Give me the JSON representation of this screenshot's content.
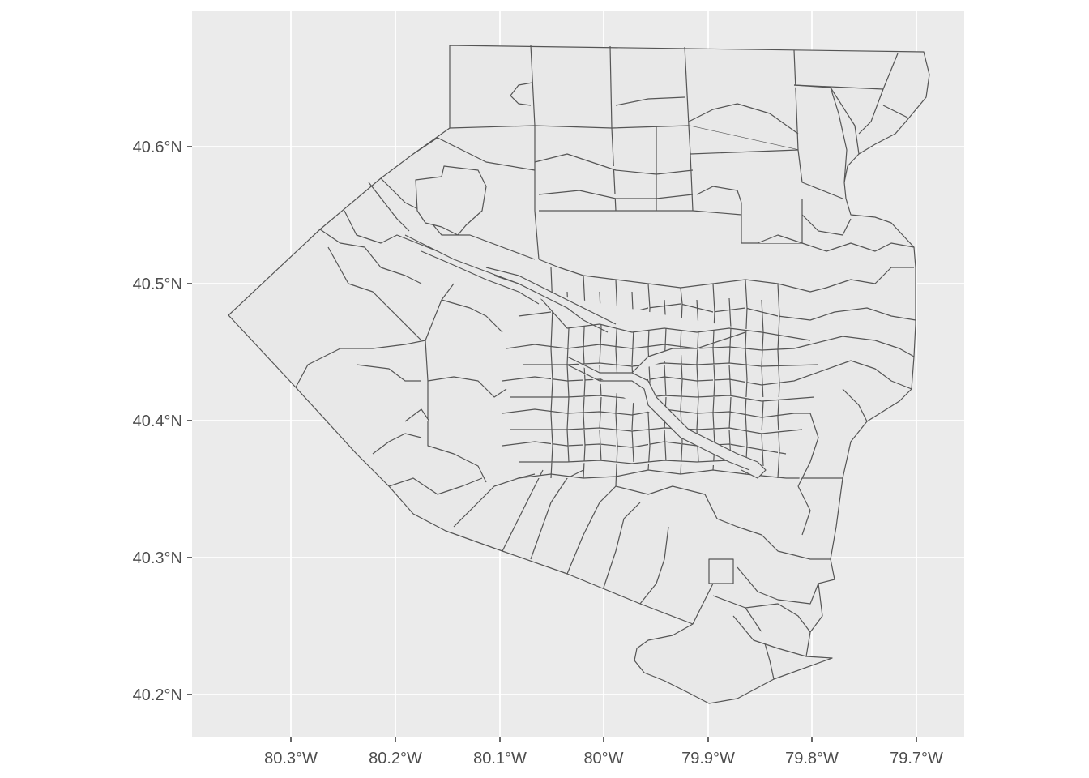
{
  "chart_data": {
    "type": "map",
    "title": "",
    "xlabel": "",
    "ylabel": "",
    "xlim": [
      -80.39,
      -79.655
    ],
    "ylim": [
      40.17,
      40.695
    ],
    "x_ticks": [
      {
        "value": -80.3,
        "label": "80.3°W"
      },
      {
        "value": -80.2,
        "label": "80.2°W"
      },
      {
        "value": -80.1,
        "label": "80.1°W"
      },
      {
        "value": -80.0,
        "label": "80°W"
      },
      {
        "value": -79.9,
        "label": "79.9°W"
      },
      {
        "value": -79.8,
        "label": "79.8°W"
      },
      {
        "value": -79.7,
        "label": "79.7°W"
      }
    ],
    "y_ticks": [
      {
        "value": 40.2,
        "label": "40.2°N"
      },
      {
        "value": 40.3,
        "label": "40.3°N"
      },
      {
        "value": 40.4,
        "label": "40.4°N"
      },
      {
        "value": 40.5,
        "label": "40.5°N"
      },
      {
        "value": 40.6,
        "label": "40.6°N"
      }
    ],
    "grid": true,
    "panel_color": "#ebebeb",
    "polygon_fill": "#e8e8e8",
    "polygon_stroke": "#555555"
  }
}
